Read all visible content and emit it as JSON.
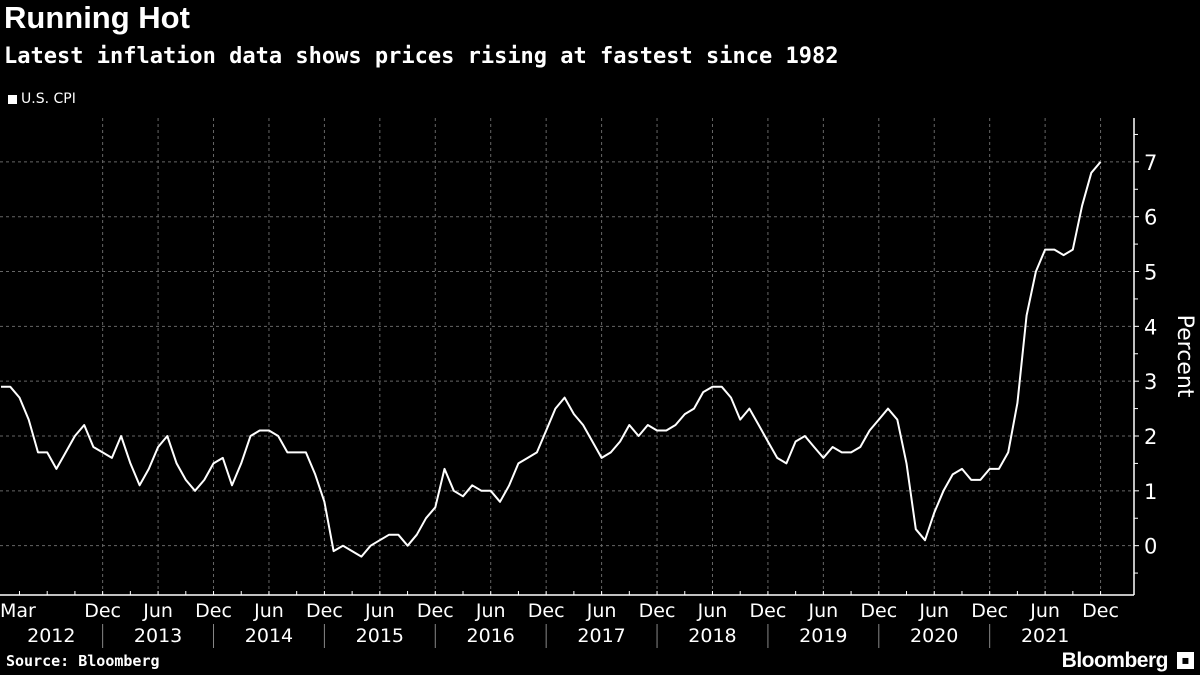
{
  "title": "Running Hot",
  "subtitle": "Latest inflation data shows prices rising at fastest since 1982",
  "source": "Source: Bloomberg",
  "logo": "Bloomberg",
  "colors": {
    "background": "#000000",
    "line": "#ffffff",
    "grid": "#666666"
  },
  "chart_data": {
    "type": "line",
    "title": "Running Hot",
    "ylabel": "Percent",
    "ylim": [
      -0.9,
      7.8
    ],
    "y_ticks": [
      0,
      1,
      2,
      3,
      4,
      5,
      6,
      7
    ],
    "grid": true,
    "legend_position": "top-left",
    "x_start": "2012-01",
    "x_end": "2021-12",
    "x_tick_labels": [
      {
        "label": "Mar",
        "month": "2012-03"
      },
      {
        "label": "Dec",
        "month": "2012-12"
      },
      {
        "label": "Jun",
        "month": "2013-06"
      },
      {
        "label": "Dec",
        "month": "2013-12"
      },
      {
        "label": "Jun",
        "month": "2014-06"
      },
      {
        "label": "Dec",
        "month": "2014-12"
      },
      {
        "label": "Jun",
        "month": "2015-06"
      },
      {
        "label": "Dec",
        "month": "2015-12"
      },
      {
        "label": "Jun",
        "month": "2016-06"
      },
      {
        "label": "Dec",
        "month": "2016-12"
      },
      {
        "label": "Jun",
        "month": "2017-06"
      },
      {
        "label": "Dec",
        "month": "2017-12"
      },
      {
        "label": "Jun",
        "month": "2018-06"
      },
      {
        "label": "Dec",
        "month": "2018-12"
      },
      {
        "label": "Jun",
        "month": "2019-06"
      },
      {
        "label": "Dec",
        "month": "2019-12"
      },
      {
        "label": "Jun",
        "month": "2020-06"
      },
      {
        "label": "Dec",
        "month": "2020-12"
      },
      {
        "label": "Jun",
        "month": "2021-06"
      },
      {
        "label": "Dec",
        "month": "2021-12"
      }
    ],
    "years": [
      "2012",
      "2013",
      "2014",
      "2015",
      "2016",
      "2017",
      "2018",
      "2019",
      "2020",
      "2021"
    ],
    "series": [
      {
        "name": "U.S. CPI",
        "values": [
          2.9,
          2.9,
          2.7,
          2.3,
          1.7,
          1.7,
          1.4,
          1.7,
          2.0,
          2.2,
          1.8,
          1.7,
          1.6,
          2.0,
          1.5,
          1.1,
          1.4,
          1.8,
          2.0,
          1.5,
          1.2,
          1.0,
          1.2,
          1.5,
          1.6,
          1.1,
          1.5,
          2.0,
          2.1,
          2.1,
          2.0,
          1.7,
          1.7,
          1.7,
          1.3,
          0.8,
          -0.1,
          0.0,
          -0.1,
          -0.2,
          0.0,
          0.1,
          0.2,
          0.2,
          0.0,
          0.2,
          0.5,
          0.7,
          1.4,
          1.0,
          0.9,
          1.1,
          1.0,
          1.0,
          0.8,
          1.1,
          1.5,
          1.6,
          1.7,
          2.1,
          2.5,
          2.7,
          2.4,
          2.2,
          1.9,
          1.6,
          1.7,
          1.9,
          2.2,
          2.0,
          2.2,
          2.1,
          2.1,
          2.2,
          2.4,
          2.5,
          2.8,
          2.9,
          2.9,
          2.7,
          2.3,
          2.5,
          2.2,
          1.9,
          1.6,
          1.5,
          1.9,
          2.0,
          1.8,
          1.6,
          1.8,
          1.7,
          1.7,
          1.8,
          2.1,
          2.3,
          2.5,
          2.3,
          1.5,
          0.3,
          0.1,
          0.6,
          1.0,
          1.3,
          1.4,
          1.2,
          1.2,
          1.4,
          1.4,
          1.7,
          2.6,
          4.2,
          5.0,
          5.4,
          5.4,
          5.3,
          5.4,
          6.2,
          6.8,
          7.0
        ]
      }
    ]
  }
}
